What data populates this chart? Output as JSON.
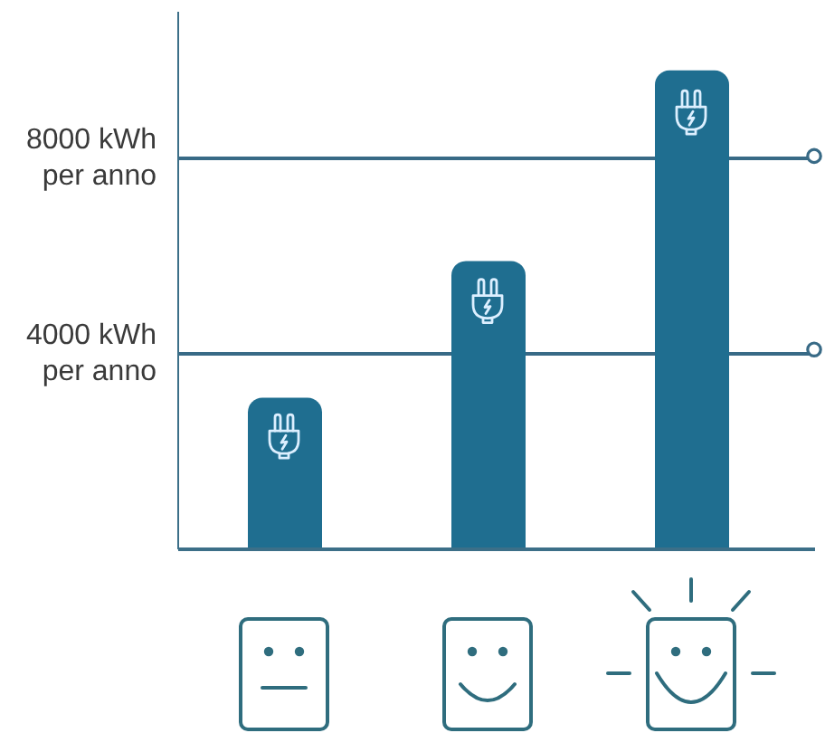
{
  "chart_data": {
    "type": "bar",
    "categories": [
      null,
      null,
      null
    ],
    "values": [
      3100,
      5900,
      9800
    ],
    "color": "#1f6e90",
    "ylim": [
      0,
      11000
    ],
    "yticks": [
      {
        "value": 4000,
        "label": "4000 kWh\nper anno"
      },
      {
        "value": 8000,
        "label": "8000 kWh\nper anno"
      }
    ],
    "grid": "y",
    "tick_labels": "y"
  }
}
